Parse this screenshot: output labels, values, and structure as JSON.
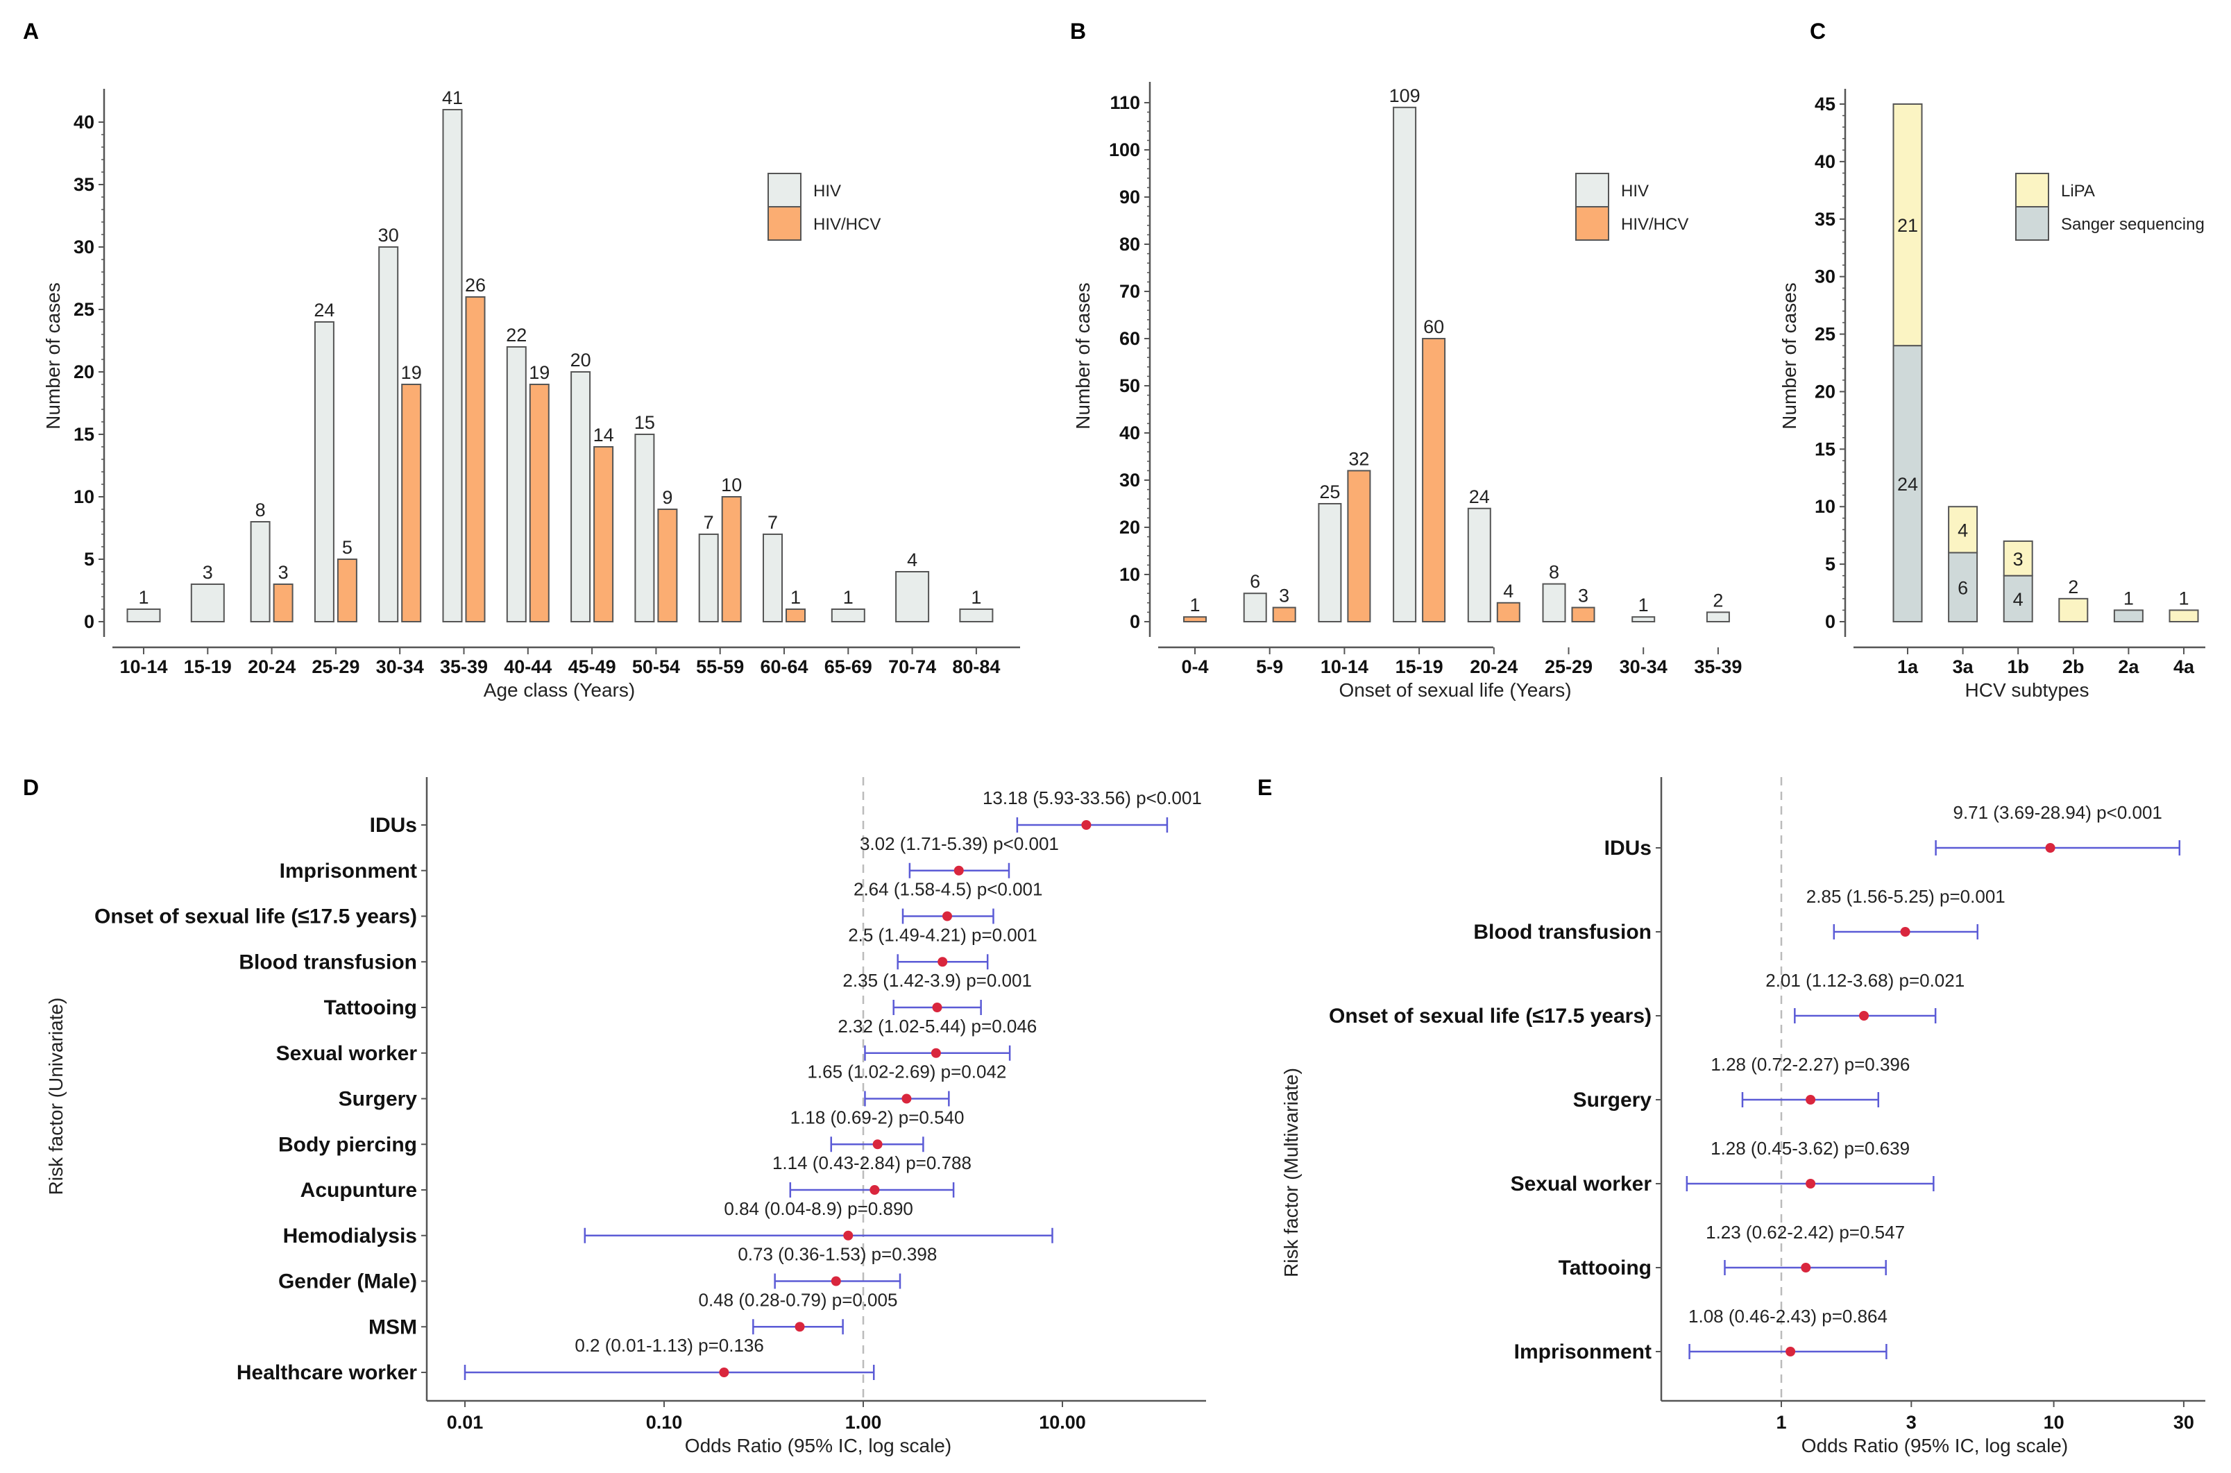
{
  "chart_data": [
    {
      "panel_label": "A",
      "type": "bar",
      "categories": [
        "10-14",
        "15-19",
        "20-24",
        "25-29",
        "30-34",
        "35-39",
        "40-44",
        "45-49",
        "50-54",
        "55-59",
        "60-64",
        "65-69",
        "70-74",
        "80-84"
      ],
      "series": [
        {
          "name": "HIV",
          "color": "#e8edeb",
          "values": [
            1,
            3,
            8,
            24,
            30,
            41,
            22,
            20,
            15,
            7,
            7,
            1,
            4,
            1
          ]
        },
        {
          "name": "HIV/HCV",
          "color": "#fbad72",
          "values": [
            null,
            null,
            3,
            5,
            19,
            26,
            19,
            14,
            9,
            10,
            1,
            null,
            null,
            null
          ]
        }
      ],
      "xlabel": "Age class (Years)",
      "ylabel": "Number of cases",
      "ylim": [
        0,
        42.5
      ],
      "yticks": [
        "0",
        "5",
        "10",
        "15",
        "20",
        "25",
        "30",
        "35",
        "40"
      ],
      "legend": "top-right"
    },
    {
      "panel_label": "B",
      "type": "bar",
      "categories": [
        "0-4",
        "5-9",
        "10-14",
        "15-19",
        "20-24",
        "25-29",
        "30-34",
        "35-39"
      ],
      "series": [
        {
          "name": "HIV",
          "color": "#e8edeb",
          "values": [
            null,
            6,
            25,
            109,
            24,
            8,
            1,
            2
          ]
        },
        {
          "name": "HIV/HCV",
          "color": "#fbad72",
          "values": [
            1,
            3,
            32,
            60,
            4,
            3,
            null,
            null
          ]
        }
      ],
      "xlabel": "Onset of sexual life (Years)",
      "ylabel": "Number of cases",
      "ylim": [
        -5,
        115
      ],
      "yticks": [
        "0",
        "10",
        "20",
        "30",
        "40",
        "50",
        "60",
        "70",
        "80",
        "90",
        "100",
        "110"
      ],
      "legend": "top-right"
    },
    {
      "panel_label": "C",
      "type": "bar",
      "stacked": true,
      "categories": [
        "1a",
        "3a",
        "1b",
        "2b",
        "2a",
        "4a"
      ],
      "series": [
        {
          "name": "LiPA",
          "color": "#fbf4c3",
          "values": [
            21,
            4,
            3,
            2,
            null,
            1
          ]
        },
        {
          "name": "Sanger sequencing",
          "color": "#cfd9d9",
          "values": [
            24,
            6,
            4,
            null,
            1,
            null
          ]
        }
      ],
      "xlabel": "HCV subtypes",
      "ylabel": "Number of cases",
      "ylim": [
        0,
        45
      ],
      "yticks": [
        "0",
        "5",
        "10",
        "15",
        "20",
        "25",
        "30",
        "35",
        "40",
        "45"
      ],
      "legend": "top-right"
    },
    {
      "panel_label": "D",
      "type": "scatter",
      "subtype": "forest",
      "xlabel": "Odds Ratio (95% IC, log scale)",
      "ylabel": "Risk factor (Univariate)",
      "xscale": "log",
      "xlim": [
        0.0065,
        52
      ],
      "xticks": [
        {
          "value": 0.01,
          "label": "0.01"
        },
        {
          "value": 0.1,
          "label": "0.10"
        },
        {
          "value": 1,
          "label": "1.00"
        },
        {
          "value": 10,
          "label": "10.00"
        }
      ],
      "reference_line": 1,
      "point_color": "#d9263d",
      "ci_color": "#5b5bd6",
      "rows": [
        {
          "label": "IDUs",
          "or": 13.18,
          "lo": 5.93,
          "hi": 33.56,
          "text": "13.18 (5.93-33.56) p<0.001"
        },
        {
          "label": "Imprisonment",
          "or": 3.02,
          "lo": 1.71,
          "hi": 5.39,
          "text": "3.02 (1.71-5.39) p<0.001"
        },
        {
          "label": "Onset of sexual life (≤17.5 years)",
          "or": 2.64,
          "lo": 1.58,
          "hi": 4.5,
          "text": "2.64 (1.58-4.5) p<0.001"
        },
        {
          "label": "Blood transfusion",
          "or": 2.5,
          "lo": 1.49,
          "hi": 4.21,
          "text": "2.5 (1.49-4.21) p=0.001"
        },
        {
          "label": "Tattooing",
          "or": 2.35,
          "lo": 1.42,
          "hi": 3.9,
          "text": "2.35 (1.42-3.9) p=0.001"
        },
        {
          "label": "Sexual worker",
          "or": 2.32,
          "lo": 1.02,
          "hi": 5.44,
          "text": "2.32 (1.02-5.44) p=0.046"
        },
        {
          "label": "Surgery",
          "or": 1.65,
          "lo": 1.02,
          "hi": 2.69,
          "text": "1.65 (1.02-2.69) p=0.042"
        },
        {
          "label": "Body piercing",
          "or": 1.18,
          "lo": 0.69,
          "hi": 2,
          "text": "1.18 (0.69-2) p=0.540"
        },
        {
          "label": "Acupunture",
          "or": 1.14,
          "lo": 0.43,
          "hi": 2.84,
          "text": "1.14 (0.43-2.84) p=0.788"
        },
        {
          "label": "Hemodialysis",
          "or": 0.84,
          "lo": 0.04,
          "hi": 8.9,
          "text": "0.84 (0.04-8.9) p=0.890"
        },
        {
          "label": "Gender (Male)",
          "or": 0.73,
          "lo": 0.36,
          "hi": 1.53,
          "text": "0.73 (0.36-1.53) p=0.398"
        },
        {
          "label": "MSM",
          "or": 0.48,
          "lo": 0.28,
          "hi": 0.79,
          "text": "0.48 (0.28-0.79) p=0.005"
        },
        {
          "label": "Healthcare worker",
          "or": 0.2,
          "lo": 0.01,
          "hi": 1.13,
          "text": "0.2 (0.01-1.13) p=0.136"
        }
      ]
    },
    {
      "panel_label": "E",
      "type": "scatter",
      "subtype": "forest",
      "xlabel": "Odds Ratio (95% IC, log scale)",
      "ylabel": "Risk factor (Multivariate)",
      "xscale": "log",
      "xlim": [
        0.36,
        36
      ],
      "xticks": [
        {
          "value": 1,
          "label": "1"
        },
        {
          "value": 3,
          "label": "3"
        },
        {
          "value": 10,
          "label": "10"
        },
        {
          "value": 30,
          "label": "30"
        }
      ],
      "reference_line": 1,
      "point_color": "#d9263d",
      "ci_color": "#5b5bd6",
      "rows": [
        {
          "label": "IDUs",
          "or": 9.71,
          "lo": 3.69,
          "hi": 28.94,
          "text": "9.71 (3.69-28.94) p<0.001"
        },
        {
          "label": "Blood transfusion",
          "or": 2.85,
          "lo": 1.56,
          "hi": 5.25,
          "text": "2.85 (1.56-5.25) p=0.001"
        },
        {
          "label": "Onset of sexual life (≤17.5 years)",
          "or": 2.01,
          "lo": 1.12,
          "hi": 3.68,
          "text": "2.01 (1.12-3.68) p=0.021"
        },
        {
          "label": "Surgery",
          "or": 1.28,
          "lo": 0.72,
          "hi": 2.27,
          "text": "1.28 (0.72-2.27) p=0.396"
        },
        {
          "label": "Sexual worker",
          "or": 1.28,
          "lo": 0.45,
          "hi": 3.62,
          "text": "1.28 (0.45-3.62) p=0.639"
        },
        {
          "label": "Tattooing",
          "or": 1.23,
          "lo": 0.62,
          "hi": 2.42,
          "text": "1.23 (0.62-2.42) p=0.547"
        },
        {
          "label": "Imprisonment",
          "or": 1.08,
          "lo": 0.46,
          "hi": 2.43,
          "text": "1.08 (0.46-2.43) p=0.864"
        }
      ]
    }
  ]
}
